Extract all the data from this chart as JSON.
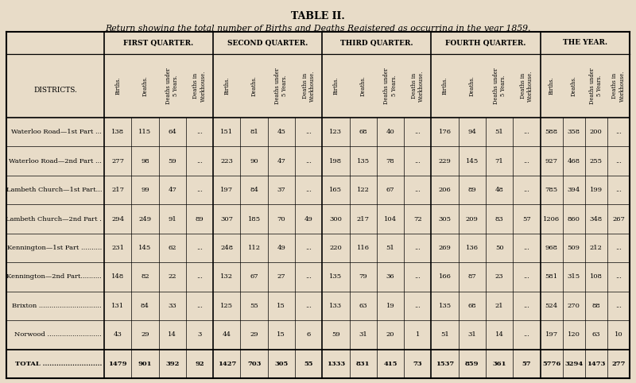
{
  "title": "TABLE II.",
  "subtitle": "Return showing the total number of Births and Deaths Registered as occurring in the year 1859.",
  "bg_color": "#e8dcc8",
  "quarters": [
    "FIRST QUARTER.",
    "SECOND QUARTER.",
    "THIRD QUARTER.",
    "FOURTH QUARTER.",
    "THE YEAR."
  ],
  "sub_cols": [
    "Births.",
    "Deaths.",
    "Deaths under\n5 Years.",
    "Deaths in\nWorkhouse."
  ],
  "districts": [
    "Waterloo Road—1st Part ...",
    "Waterloo Road—2nd Part ...",
    "Lambeth Church—1st Part...",
    "Lambeth Church—2nd Part .",
    "Kennington—1st Part ..........",
    "Kennington—2nd Part..........",
    "Brixton ..............................",
    "Norwood ..........................",
    "TOTAL .........................."
  ],
  "districts_display": [
    "Waterloo Road—1st Part ...",
    "Waterloo Road—2nd Part ...",
    "Lambeth Church—1st Part...",
    "Lambeth Church—2nd Part .",
    "Kennington—1st Part ..........",
    "Kennington—2nd Part..........",
    "Brixton ..............................",
    "Norwood ..........................",
    "Total .........................."
  ],
  "data": [
    [
      138,
      115,
      64,
      "...",
      151,
      81,
      45,
      "...",
      123,
      68,
      40,
      "...",
      176,
      94,
      51,
      "...",
      588,
      358,
      200,
      "..."
    ],
    [
      277,
      98,
      59,
      "...",
      223,
      90,
      47,
      "...",
      198,
      135,
      78,
      "...",
      229,
      145,
      71,
      "...",
      927,
      468,
      255,
      "..."
    ],
    [
      217,
      99,
      47,
      "...",
      197,
      84,
      37,
      "...",
      165,
      122,
      67,
      "...",
      206,
      89,
      48,
      "...",
      785,
      394,
      199,
      "..."
    ],
    [
      294,
      249,
      91,
      89,
      307,
      185,
      70,
      49,
      300,
      217,
      104,
      72,
      305,
      209,
      83,
      57,
      1206,
      860,
      348,
      267
    ],
    [
      231,
      145,
      62,
      "...",
      248,
      112,
      49,
      "...",
      220,
      116,
      51,
      "...",
      269,
      136,
      50,
      "...",
      968,
      509,
      212,
      "..."
    ],
    [
      148,
      82,
      22,
      "...",
      132,
      67,
      27,
      "...",
      135,
      79,
      36,
      "...",
      166,
      87,
      23,
      "...",
      581,
      315,
      108,
      "..."
    ],
    [
      131,
      84,
      33,
      "...",
      125,
      55,
      15,
      "...",
      133,
      63,
      19,
      "...",
      135,
      68,
      21,
      "...",
      524,
      270,
      88,
      "..."
    ],
    [
      43,
      29,
      14,
      3,
      44,
      29,
      15,
      6,
      59,
      31,
      20,
      1,
      51,
      31,
      14,
      "...",
      197,
      120,
      63,
      10
    ],
    [
      1479,
      901,
      392,
      92,
      1427,
      703,
      305,
      55,
      1333,
      831,
      415,
      73,
      1537,
      859,
      361,
      57,
      5776,
      3294,
      1473,
      277
    ]
  ]
}
